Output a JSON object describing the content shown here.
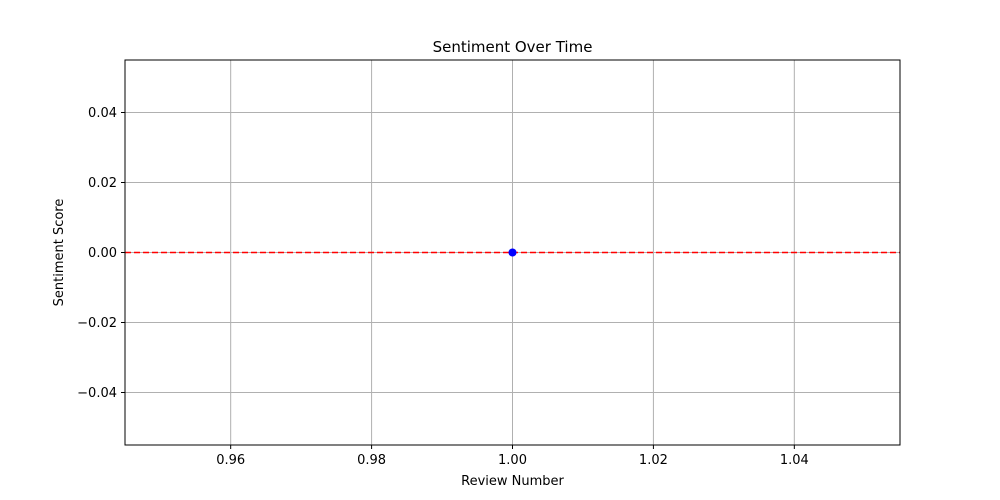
{
  "chart_data": {
    "type": "line",
    "title": "Sentiment Over Time",
    "xlabel": "Review Number",
    "ylabel": "Sentiment Score",
    "xlim": [
      0.945,
      1.055
    ],
    "ylim": [
      -0.055,
      0.055
    ],
    "xticks": [
      0.96,
      0.98,
      1.0,
      1.02,
      1.04
    ],
    "xtick_labels": [
      "0.96",
      "0.98",
      "1.00",
      "1.02",
      "1.04"
    ],
    "yticks": [
      -0.04,
      -0.02,
      0.0,
      0.02,
      0.04
    ],
    "ytick_labels": [
      "−0.04",
      "−0.02",
      "0.00",
      "0.02",
      "0.04"
    ],
    "grid": true,
    "series": [
      {
        "x": [
          1.0
        ],
        "y": [
          0.0
        ],
        "color": "#0000ff",
        "marker": "circle"
      }
    ],
    "reference_line": {
      "y": 0.0,
      "color": "#ff0000",
      "style": "dashed"
    }
  }
}
